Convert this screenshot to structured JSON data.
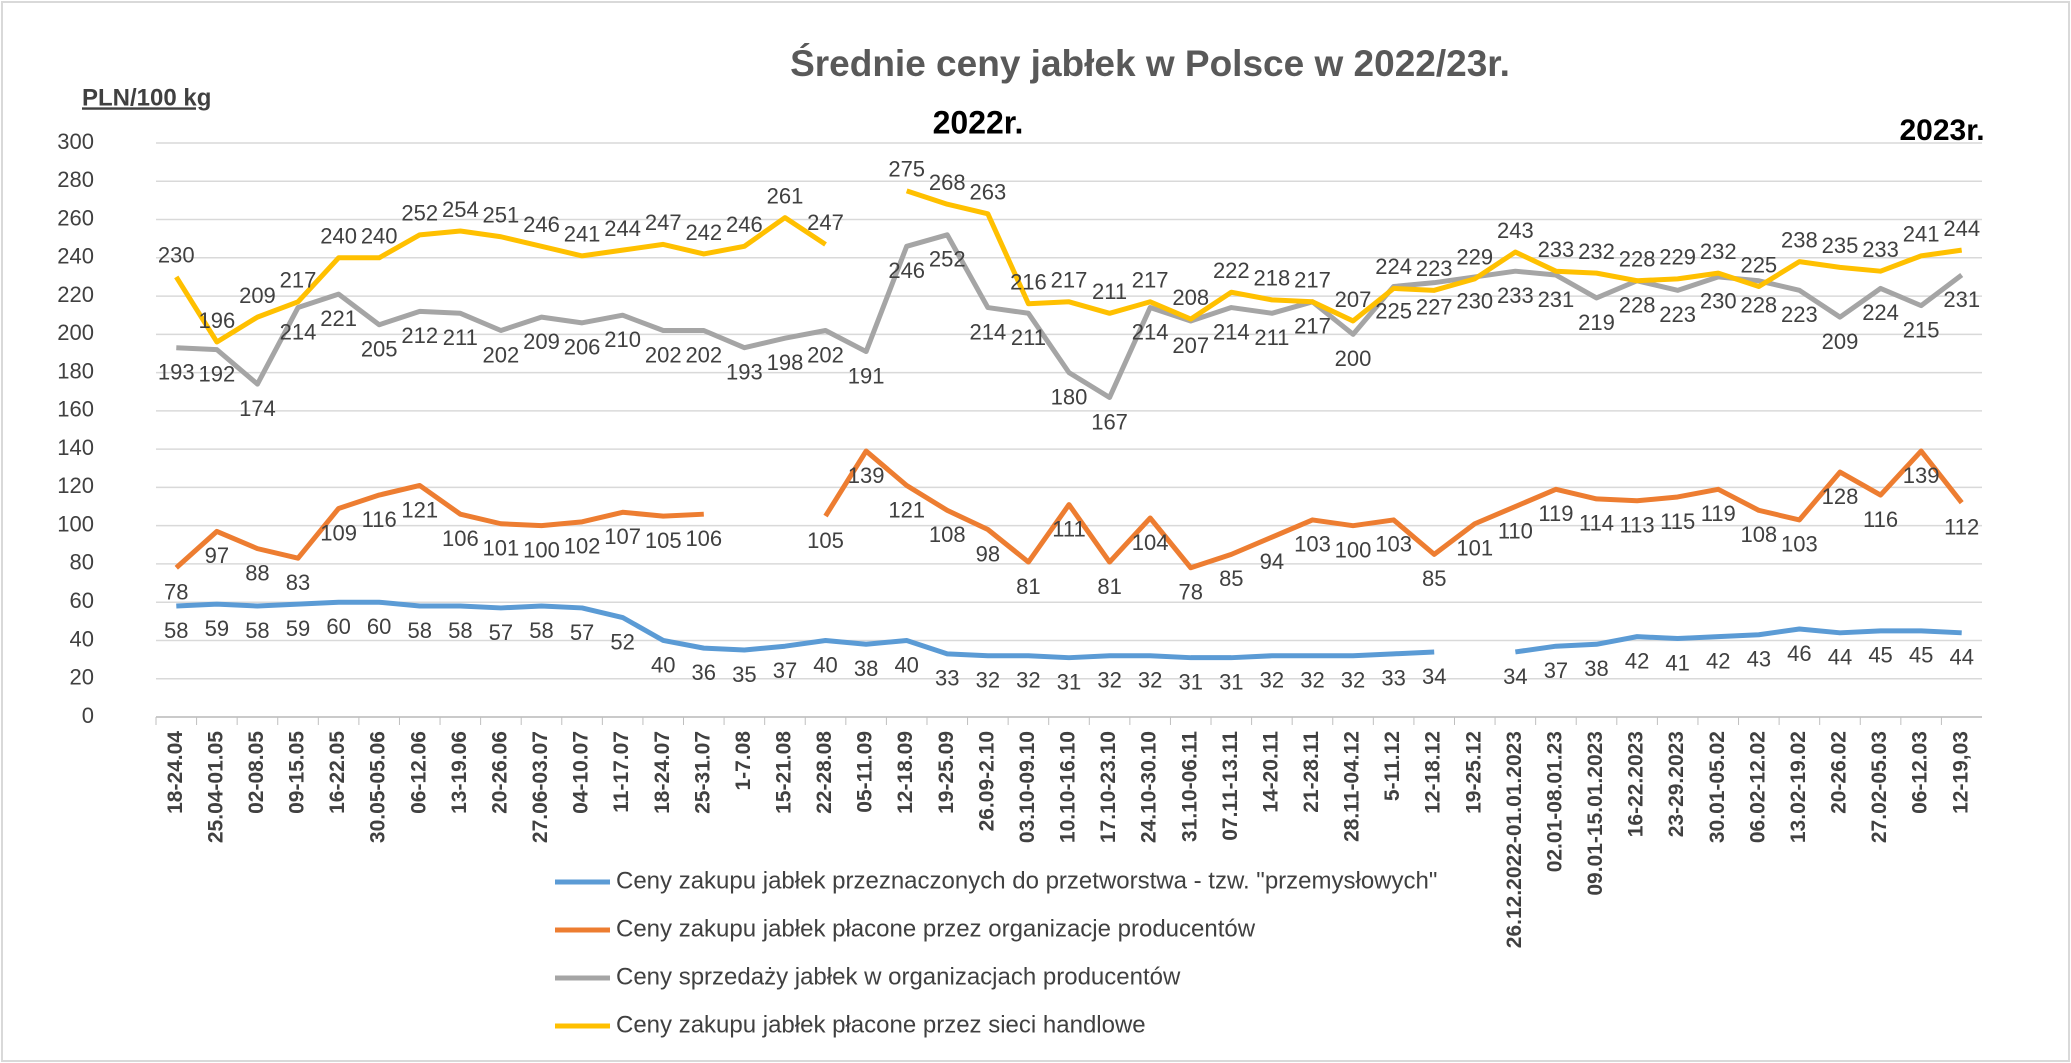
{
  "chart_data": {
    "type": "line",
    "title": "Średnie ceny jabłek w Polsce w 2022/23r.",
    "y_axis_label": "PLN/100 kg",
    "annotations": [
      "2022r.",
      "2023r."
    ],
    "categories": [
      "18-24.04",
      "25.04-01.05",
      "02-08.05",
      "09-15.05",
      "16-22.05",
      "30.05-05.06",
      "06-12.06",
      "13-19.06",
      "20-26.06",
      "27.06-03.07",
      "04-10.07",
      "11-17.07",
      "18-24.07",
      "25-31.07",
      "1-7.08",
      "15-21.08",
      "22-28.08",
      "05-11.09",
      "12-18.09",
      "19-25.09",
      "26.09-2.10",
      "03.10-09.10",
      "10.10-16.10",
      "17.10-23.10",
      "24.10-30.10",
      "31.10-06.11",
      "07.11-13.11",
      "14-20.11",
      "21-28.11",
      "28.11-04.12",
      "5-11.12",
      "12-18.12",
      "19-25.12",
      "26.12.2022-01.01.2023",
      "02.01-08.01.23",
      "09.01-15.01.2023",
      "16-22.2023",
      "23-29.2023",
      "30.01-05.02",
      "06.02-12.02",
      "13.02-19.02",
      "20-26.02",
      "27.02-05.03",
      "06-12.03",
      "12-19,03"
    ],
    "series": [
      {
        "name": "Ceny zakupu jabłek przeznaczonych do przetworstwa - tzw. \"przemysłowych\"",
        "color": "#5b9bd5",
        "values": [
          58,
          59,
          58,
          59,
          60,
          60,
          58,
          58,
          57,
          58,
          57,
          52,
          40,
          36,
          35,
          37,
          40,
          38,
          40,
          33,
          32,
          32,
          31,
          32,
          32,
          31,
          31,
          32,
          32,
          32,
          33,
          34,
          null,
          34,
          37,
          38,
          42,
          41,
          42,
          43,
          46,
          44,
          45,
          45,
          44
        ]
      },
      {
        "name": "Ceny zakupu jabłek płacone przez organizacje  producentów",
        "color": "#ed7d31",
        "values": [
          78,
          97,
          88,
          83,
          109,
          116,
          121,
          106,
          101,
          100,
          102,
          107,
          105,
          106,
          null,
          null,
          105,
          139,
          121,
          108,
          98,
          81,
          111,
          81,
          104,
          78,
          85,
          94,
          103,
          100,
          103,
          85,
          101,
          110,
          119,
          114,
          113,
          115,
          119,
          108,
          103,
          128,
          116,
          139,
          112
        ]
      },
      {
        "name": "Ceny sprzedaży jabłek w organizacjach  producentów",
        "color": "#a5a5a5",
        "values": [
          193,
          192,
          174,
          214,
          221,
          205,
          212,
          211,
          202,
          209,
          206,
          210,
          202,
          202,
          193,
          198,
          202,
          191,
          246,
          252,
          214,
          211,
          180,
          167,
          214,
          207,
          214,
          211,
          217,
          200,
          225,
          227,
          230,
          233,
          231,
          219,
          228,
          223,
          230,
          228,
          223,
          209,
          224,
          215,
          231
        ]
      },
      {
        "name": "Ceny zakupu jabłek płacone przez sieci handlowe",
        "color": "#ffc000",
        "values": [
          230,
          196,
          209,
          217,
          240,
          240,
          252,
          254,
          251,
          246,
          241,
          244,
          247,
          242,
          246,
          261,
          247,
          null,
          275,
          268,
          263,
          216,
          217,
          211,
          217,
          208,
          222,
          218,
          217,
          207,
          224,
          223,
          229,
          243,
          233,
          232,
          228,
          229,
          232,
          225,
          238,
          235,
          233,
          241,
          244
        ]
      }
    ],
    "ylim": [
      0,
      300
    ],
    "yticks": [
      0,
      20,
      40,
      60,
      80,
      100,
      120,
      140,
      160,
      180,
      200,
      220,
      240,
      260,
      280,
      300
    ],
    "grid": true
  }
}
